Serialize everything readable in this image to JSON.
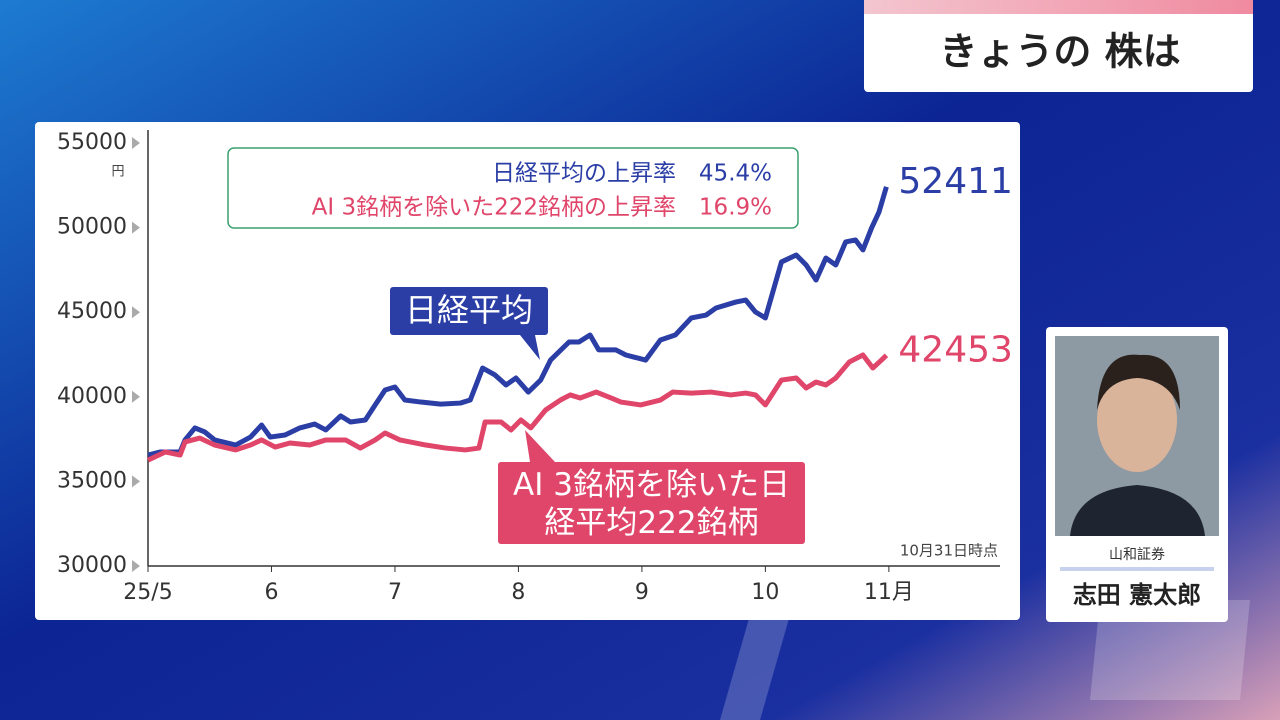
{
  "header": {
    "title": "きょうの 株は"
  },
  "chart_data": {
    "type": "line",
    "y_unit": "円",
    "note": "10月31日時点",
    "summary": [
      {
        "label": "日経平均の上昇率",
        "value": "45.4%"
      },
      {
        "label": "AI 3銘柄を除いた222銘柄の上昇率",
        "value": "16.9%"
      }
    ],
    "xlim": [
      5,
      11.9
    ],
    "xticks": [
      {
        "value": 5,
        "label": "25/5"
      },
      6,
      7,
      8,
      9,
      10,
      {
        "value": 11,
        "label": "11月"
      }
    ],
    "ylim": [
      30000,
      55000
    ],
    "yticks": [
      30000,
      35000,
      40000,
      45000,
      50000,
      55000
    ],
    "series": [
      {
        "name": "日経平均",
        "color": "#2b3ea6",
        "x": [
          5.0,
          5.1,
          5.26,
          5.3,
          5.38,
          5.46,
          5.54,
          5.71,
          5.83,
          5.92,
          5.99,
          6.11,
          6.23,
          6.35,
          6.44,
          6.56,
          6.64,
          6.76,
          6.84,
          6.92,
          7.0,
          7.08,
          7.21,
          7.37,
          7.53,
          7.61,
          7.71,
          7.81,
          7.9,
          7.98,
          8.08,
          8.18,
          8.26,
          8.41,
          8.49,
          8.58,
          8.65,
          8.79,
          8.87,
          9.03,
          9.15,
          9.27,
          9.4,
          9.52,
          9.6,
          9.76,
          9.84,
          9.92,
          10.0,
          10.13,
          10.25,
          10.33,
          10.41,
          10.49,
          10.57,
          10.65,
          10.73,
          10.79,
          10.86,
          10.92,
          10.98
        ],
        "values": [
          36560,
          36740,
          36740,
          37450,
          38160,
          37920,
          37450,
          37150,
          37620,
          38330,
          37620,
          37740,
          38160,
          38390,
          38040,
          38870,
          38510,
          38630,
          39520,
          40400,
          40580,
          39810,
          39690,
          39570,
          39630,
          39810,
          41700,
          41290,
          40700,
          41110,
          40280,
          40990,
          42170,
          43240,
          43240,
          43650,
          42770,
          42770,
          42470,
          42170,
          43360,
          43650,
          44660,
          44830,
          45250,
          45600,
          45720,
          45010,
          44660,
          47970,
          48380,
          47790,
          46900,
          48200,
          47790,
          49150,
          49270,
          48680,
          49980,
          50920,
          52411
        ]
      },
      {
        "name": "AI 3銘柄を除いた日経平均222銘柄",
        "color": "#e0456a",
        "x": [
          5.0,
          5.14,
          5.26,
          5.3,
          5.42,
          5.54,
          5.71,
          5.83,
          5.92,
          6.03,
          6.15,
          6.31,
          6.44,
          6.6,
          6.72,
          6.84,
          6.92,
          7.04,
          7.25,
          7.41,
          7.57,
          7.68,
          7.73,
          7.86,
          7.94,
          8.02,
          8.1,
          8.22,
          8.34,
          8.42,
          8.5,
          8.63,
          8.75,
          8.83,
          8.99,
          9.15,
          9.25,
          9.4,
          9.56,
          9.72,
          9.84,
          9.92,
          10.0,
          10.13,
          10.25,
          10.33,
          10.41,
          10.49,
          10.57,
          10.68,
          10.79,
          10.87,
          10.94,
          10.98
        ],
        "values": [
          36260,
          36740,
          36560,
          37330,
          37560,
          37150,
          36860,
          37150,
          37450,
          37030,
          37270,
          37150,
          37450,
          37450,
          36970,
          37450,
          37860,
          37450,
          37150,
          36970,
          36860,
          36970,
          38510,
          38510,
          38040,
          38630,
          38160,
          39220,
          39810,
          40110,
          39930,
          40280,
          39930,
          39690,
          39520,
          39810,
          40280,
          40220,
          40280,
          40110,
          40220,
          40110,
          39520,
          40990,
          41110,
          40520,
          40870,
          40700,
          41110,
          42060,
          42470,
          41700,
          42170,
          42453
        ]
      }
    ]
  },
  "presenter": {
    "company": "山和証券",
    "name": "志田 憲太郎"
  }
}
